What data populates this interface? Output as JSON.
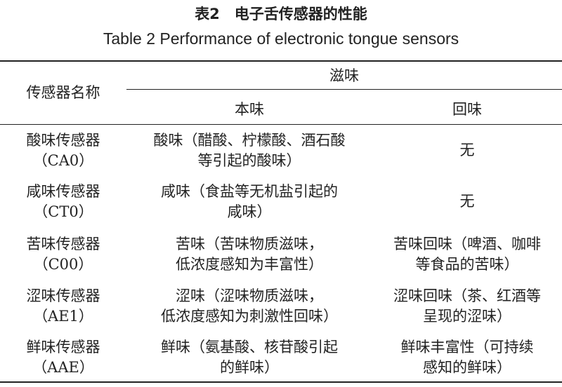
{
  "title_cn": "表2　电子舌传感器的性能",
  "title_en": "Table 2 Performance of electronic tongue sensors",
  "header": {
    "col1": "传感器名称",
    "group": "滋味",
    "col2": "本味",
    "col3": "回味"
  },
  "rows": [
    {
      "sensor": [
        "酸味传感器",
        "（CA0）"
      ],
      "taste": [
        "酸味（醋酸、柠檬酸、酒石酸",
        "等引起的酸味）"
      ],
      "aftertaste": [
        "无"
      ]
    },
    {
      "sensor": [
        "咸味传感器",
        "（CT0）"
      ],
      "taste": [
        "咸味（食盐等无机盐引起的",
        "咸味）"
      ],
      "aftertaste": [
        "无"
      ]
    },
    {
      "sensor": [
        "苦味传感器",
        "（C00）"
      ],
      "taste": [
        "苦味（苦味物质滋味，",
        "低浓度感知为丰富性）"
      ],
      "aftertaste": [
        "苦味回味（啤酒、咖啡",
        "等食品的苦味）"
      ]
    },
    {
      "sensor": [
        "涩味传感器",
        "（AE1）"
      ],
      "taste": [
        "涩味（涩味物质滋味，",
        "低浓度感知为刺激性回味）"
      ],
      "aftertaste": [
        "涩味回味（茶、红酒等",
        "呈现的涩味）"
      ]
    },
    {
      "sensor": [
        "鲜味传感器",
        "（AAE）"
      ],
      "taste": [
        "鲜味（氨基酸、核苷酸引起",
        "的鲜味）"
      ],
      "aftertaste": [
        "鲜味丰富性（可持续",
        "感知的鲜味）"
      ]
    }
  ]
}
